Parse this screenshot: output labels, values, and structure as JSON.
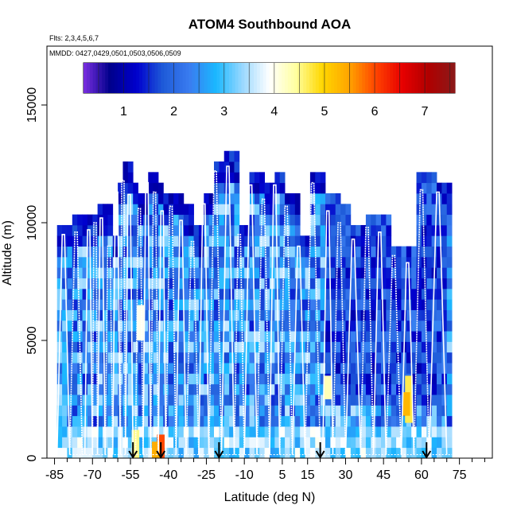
{
  "chart_data": {
    "type": "heatmap",
    "title": "ATOM4 Southbound AOA",
    "subtitle_flights": "Flts: 2,3,4,5,6,7",
    "subtitle_dates": "MMDD: 0427,0429,0501,0503,0506,0509",
    "xlabel": "Latitude (deg N)",
    "ylabel": "Altitude (m)",
    "xlim": [
      -88,
      88
    ],
    "ylim": [
      0,
      17500
    ],
    "x_ticks": [
      "-85",
      "-70",
      "-55",
      "-40",
      "-25",
      "-10",
      "5",
      "15",
      "30",
      "45",
      "60",
      "75"
    ],
    "y_ticks": [
      "0",
      "5000",
      "10000",
      "15000"
    ],
    "colorbar": {
      "ticks": [
        "1",
        "2",
        "3",
        "4",
        "5",
        "6",
        "7"
      ],
      "range": [
        0.2,
        7.6
      ],
      "colors": [
        "#7b2fe0",
        "#00008b",
        "#0000cd",
        "#1e5bd8",
        "#3a7cf0",
        "#1ab8ff",
        "#9ad8ff",
        "#ffffff",
        "#ffffa0",
        "#ffd700",
        "#ffa500",
        "#ff4500",
        "#e80000",
        "#b00000",
        "#8b1a1a"
      ]
    },
    "arrows_lat": [
      -54,
      -43,
      -20,
      20,
      62
    ],
    "profiles": [
      {
        "lat_low": -84,
        "lat_high": -79,
        "ceiling": 9500
      },
      {
        "lat_low": -79,
        "lat_high": -74,
        "ceiling": 9600
      },
      {
        "lat_low": -73,
        "lat_high": -70,
        "ceiling": 9700
      },
      {
        "lat_low": -70,
        "lat_high": -68,
        "ceiling": 10000
      },
      {
        "lat_low": -68,
        "lat_high": -65,
        "ceiling": 10200
      },
      {
        "lat_low": -65,
        "lat_high": -62,
        "ceiling": 9000
      },
      {
        "lat_low": -62,
        "lat_high": -59,
        "ceiling": 11300
      },
      {
        "lat_low": -59,
        "lat_high": -57,
        "ceiling": 11800
      },
      {
        "lat_low": -57,
        "lat_high": -54,
        "ceiling": 11200
      },
      {
        "lat_low": -53,
        "lat_high": -50,
        "ceiling": 10600
      },
      {
        "lat_low": -50,
        "lat_high": -47,
        "ceiling": 11700
      },
      {
        "lat_low": -47,
        "lat_high": -44,
        "ceiling": 11300
      },
      {
        "lat_low": -44,
        "lat_high": -41,
        "ceiling": 10500
      },
      {
        "lat_low": -41,
        "lat_high": -37,
        "ceiling": 10700
      },
      {
        "lat_low": -37,
        "lat_high": -33,
        "ceiling": 10100
      },
      {
        "lat_low": -33,
        "lat_high": -28,
        "ceiling": 9200
      },
      {
        "lat_low": -28,
        "lat_high": -24,
        "ceiling": 10800
      },
      {
        "lat_low": -24,
        "lat_high": -19,
        "ceiling": 12200
      },
      {
        "lat_low": -19,
        "lat_high": -14,
        "ceiling": 12400
      },
      {
        "lat_low": -14,
        "lat_high": -10,
        "ceiling": 9500
      },
      {
        "lat_low": -10,
        "lat_high": -5,
        "ceiling": 11600
      },
      {
        "lat_low": -5,
        "lat_high": 0,
        "ceiling": 11000
      },
      {
        "lat_low": 0,
        "lat_high": 4,
        "ceiling": 11600
      },
      {
        "lat_low": 4,
        "lat_high": 9,
        "ceiling": 10700
      },
      {
        "lat_low": 9,
        "lat_high": 14,
        "ceiling": 9000
      },
      {
        "lat_low": 14,
        "lat_high": 20,
        "ceiling": 11700
      },
      {
        "lat_low": 21,
        "lat_high": 25,
        "ceiling": 10500
      },
      {
        "lat_low": 25,
        "lat_high": 30,
        "ceiling": 10000
      },
      {
        "lat_low": 30,
        "lat_high": 36,
        "ceiling": 9300
      },
      {
        "lat_low": 36,
        "lat_high": 41,
        "ceiling": 9800
      },
      {
        "lat_low": 41,
        "lat_high": 46,
        "ceiling": 9600
      },
      {
        "lat_low": 46,
        "lat_high": 52,
        "ceiling": 8600
      },
      {
        "lat_low": 52,
        "lat_high": 57,
        "ceiling": 8300
      },
      {
        "lat_low": 57,
        "lat_high": 63,
        "ceiling": 11400
      },
      {
        "lat_low": 63,
        "lat_high": 70,
        "ceiling": 11300
      }
    ],
    "hotspots": [
      {
        "lat": -43,
        "alt_low": 0,
        "alt_high": 1000,
        "aoa": 6.0
      },
      {
        "lat": -45,
        "alt_low": 0,
        "alt_high": 700,
        "aoa": 5.4
      },
      {
        "lat": 55,
        "alt_low": 1500,
        "alt_high": 3500,
        "aoa": 4.7
      },
      {
        "lat": 54,
        "alt_low": 1800,
        "alt_high": 2800,
        "aoa": 5.3
      },
      {
        "lat": -51,
        "alt_low": 5000,
        "alt_high": 6500,
        "aoa": 4.0
      },
      {
        "lat": 23,
        "alt_low": 2500,
        "alt_high": 3500,
        "aoa": 4.3
      },
      {
        "lat": -53,
        "alt_low": 0,
        "alt_high": 1200,
        "aoa": 4.5
      }
    ]
  }
}
